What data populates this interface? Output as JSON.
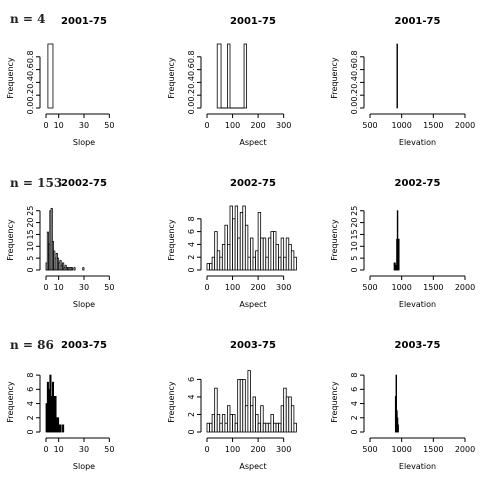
{
  "chart_data": [
    {
      "row_label": "n = 4",
      "panels": [
        {
          "type": "histogram",
          "title": "2001-75",
          "xlabel": "Slope",
          "ylabel": "Frequency",
          "xlim": [
            0,
            60
          ],
          "xticks": [
            "0",
            "10",
            "30",
            "50"
          ],
          "ylim": [
            0,
            1
          ],
          "yticks": [
            "0.0",
            "0.2",
            "0.4",
            "0.6",
            "0.8"
          ],
          "fill": "none",
          "bins": [
            {
              "x0": 1.5,
              "x1": 5.5,
              "count": 1
            }
          ]
        },
        {
          "type": "histogram",
          "title": "2001-75",
          "xlabel": "Aspect",
          "ylabel": "Frequency",
          "xlim": [
            0,
            360
          ],
          "xticks": [
            "0",
            "100",
            "200",
            "300"
          ],
          "ylim": [
            0,
            1
          ],
          "yticks": [
            "0.0",
            "0.2",
            "0.4",
            "0.6",
            "0.8"
          ],
          "fill": "none",
          "bins": [
            {
              "x0": 40,
              "x1": 55,
              "count": 1
            },
            {
              "x0": 55,
              "x1": 80,
              "count": 0
            },
            {
              "x0": 80,
              "x1": 90,
              "count": 1
            },
            {
              "x0": 90,
              "x1": 145,
              "count": 0
            },
            {
              "x0": 145,
              "x1": 155,
              "count": 1
            }
          ]
        },
        {
          "type": "histogram",
          "title": "2001-75",
          "xlabel": "Elevation",
          "ylabel": "Frequency",
          "xlim": [
            500,
            2000
          ],
          "xticks": [
            "500",
            "1000",
            "1500",
            "2000"
          ],
          "ylim": [
            0,
            1
          ],
          "yticks": [
            "0.0",
            "0.2",
            "0.4",
            "0.6",
            "0.8"
          ],
          "fill": "none",
          "bins": [
            {
              "x0": 925,
              "x1": 929,
              "count": 1
            }
          ]
        }
      ]
    },
    {
      "row_label": "n = 153",
      "panels": [
        {
          "type": "histogram",
          "title": "2002-75",
          "xlabel": "Slope",
          "ylabel": "Frequency",
          "xlim": [
            0,
            60
          ],
          "xticks": [
            "0",
            "10",
            "30",
            "50"
          ],
          "ylim": [
            0,
            27
          ],
          "yticks": [
            "0",
            "5",
            "10",
            "15",
            "20",
            "25"
          ],
          "fill": "none",
          "bins": [
            {
              "x0": 0,
              "x1": 1,
              "count": 3
            },
            {
              "x0": 1,
              "x1": 2,
              "count": 16
            },
            {
              "x0": 2,
              "x1": 3,
              "count": 11
            },
            {
              "x0": 3,
              "x1": 4,
              "count": 25
            },
            {
              "x0": 4,
              "x1": 5,
              "count": 26
            },
            {
              "x0": 5,
              "x1": 6,
              "count": 12
            },
            {
              "x0": 6,
              "x1": 7,
              "count": 8
            },
            {
              "x0": 7,
              "x1": 8,
              "count": 5
            },
            {
              "x0": 8,
              "x1": 9,
              "count": 7
            },
            {
              "x0": 9,
              "x1": 10,
              "count": 5
            },
            {
              "x0": 10,
              "x1": 11,
              "count": 3
            },
            {
              "x0": 11,
              "x1": 12,
              "count": 4
            },
            {
              "x0": 12,
              "x1": 13,
              "count": 2
            },
            {
              "x0": 13,
              "x1": 14,
              "count": 3
            },
            {
              "x0": 14,
              "x1": 15,
              "count": 1
            },
            {
              "x0": 15,
              "x1": 16,
              "count": 2
            },
            {
              "x0": 16,
              "x1": 17,
              "count": 1
            },
            {
              "x0": 17,
              "x1": 18,
              "count": 1
            },
            {
              "x0": 18,
              "x1": 19,
              "count": 1
            },
            {
              "x0": 19,
              "x1": 20,
              "count": 1
            },
            {
              "x0": 20,
              "x1": 21,
              "count": 1
            },
            {
              "x0": 22,
              "x1": 23,
              "count": 1
            },
            {
              "x0": 29,
              "x1": 30,
              "count": 1
            }
          ]
        },
        {
          "type": "histogram",
          "title": "2002-75",
          "xlabel": "Aspect",
          "ylabel": "Frequency",
          "xlim": [
            0,
            360
          ],
          "xticks": [
            "0",
            "100",
            "200",
            "300"
          ],
          "ylim": [
            0,
            10
          ],
          "yticks": [
            "0",
            "2",
            "4",
            "6",
            "8"
          ],
          "fill": "none",
          "bins": [
            {
              "x0": 0,
              "x1": 10,
              "count": 1
            },
            {
              "x0": 10,
              "x1": 20,
              "count": 1
            },
            {
              "x0": 20,
              "x1": 30,
              "count": 2
            },
            {
              "x0": 30,
              "x1": 40,
              "count": 6
            },
            {
              "x0": 40,
              "x1": 50,
              "count": 3
            },
            {
              "x0": 50,
              "x1": 60,
              "count": 2
            },
            {
              "x0": 60,
              "x1": 70,
              "count": 4
            },
            {
              "x0": 70,
              "x1": 80,
              "count": 7
            },
            {
              "x0": 80,
              "x1": 90,
              "count": 4
            },
            {
              "x0": 90,
              "x1": 100,
              "count": 10
            },
            {
              "x0": 100,
              "x1": 110,
              "count": 8
            },
            {
              "x0": 110,
              "x1": 120,
              "count": 10
            },
            {
              "x0": 120,
              "x1": 130,
              "count": 5
            },
            {
              "x0": 130,
              "x1": 140,
              "count": 9
            },
            {
              "x0": 140,
              "x1": 150,
              "count": 10
            },
            {
              "x0": 150,
              "x1": 160,
              "count": 7
            },
            {
              "x0": 160,
              "x1": 170,
              "count": 2
            },
            {
              "x0": 170,
              "x1": 180,
              "count": 5
            },
            {
              "x0": 180,
              "x1": 190,
              "count": 2
            },
            {
              "x0": 190,
              "x1": 200,
              "count": 3
            },
            {
              "x0": 200,
              "x1": 210,
              "count": 9
            },
            {
              "x0": 210,
              "x1": 220,
              "count": 5
            },
            {
              "x0": 220,
              "x1": 230,
              "count": 5
            },
            {
              "x0": 230,
              "x1": 240,
              "count": 2
            },
            {
              "x0": 240,
              "x1": 250,
              "count": 5
            },
            {
              "x0": 250,
              "x1": 260,
              "count": 6
            },
            {
              "x0": 260,
              "x1": 270,
              "count": 6
            },
            {
              "x0": 270,
              "x1": 280,
              "count": 4
            },
            {
              "x0": 280,
              "x1": 290,
              "count": 2
            },
            {
              "x0": 290,
              "x1": 300,
              "count": 5
            },
            {
              "x0": 300,
              "x1": 310,
              "count": 2
            },
            {
              "x0": 310,
              "x1": 320,
              "count": 5
            },
            {
              "x0": 320,
              "x1": 330,
              "count": 4
            },
            {
              "x0": 330,
              "x1": 340,
              "count": 3
            },
            {
              "x0": 340,
              "x1": 350,
              "count": 2
            }
          ]
        },
        {
          "type": "histogram",
          "title": "2002-75",
          "xlabel": "Elevation",
          "ylabel": "Frequency",
          "xlim": [
            500,
            2000
          ],
          "xticks": [
            "500",
            "1000",
            "1500",
            "2000"
          ],
          "ylim": [
            0,
            27
          ],
          "yticks": [
            "0",
            "5",
            "10",
            "15",
            "20",
            "25"
          ],
          "fill": "#000",
          "bins": [
            {
              "x0": 880,
              "x1": 900,
              "count": 3
            },
            {
              "x0": 900,
              "x1": 920,
              "count": 2
            },
            {
              "x0": 920,
              "x1": 930,
              "count": 13
            },
            {
              "x0": 930,
              "x1": 940,
              "count": 25
            },
            {
              "x0": 940,
              "x1": 960,
              "count": 13
            }
          ]
        }
      ]
    },
    {
      "row_label": "n = 86",
      "panels": [
        {
          "type": "histogram",
          "title": "2003-75",
          "xlabel": "Slope",
          "ylabel": "Frequency",
          "xlim": [
            0,
            60
          ],
          "xticks": [
            "0",
            "10",
            "30",
            "50"
          ],
          "ylim": [
            0,
            9
          ],
          "yticks": [
            "0",
            "2",
            "4",
            "6",
            "8"
          ],
          "fill": "#000",
          "bins": [
            {
              "x0": 0,
              "x1": 1,
              "count": 4
            },
            {
              "x0": 1,
              "x1": 2,
              "count": 7
            },
            {
              "x0": 2,
              "x1": 3,
              "count": 6
            },
            {
              "x0": 3,
              "x1": 4,
              "count": 8
            },
            {
              "x0": 4,
              "x1": 5,
              "count": 5
            },
            {
              "x0": 5,
              "x1": 6,
              "count": 7
            },
            {
              "x0": 6,
              "x1": 7,
              "count": 5
            },
            {
              "x0": 7,
              "x1": 8,
              "count": 5
            },
            {
              "x0": 8,
              "x1": 9,
              "count": 2
            },
            {
              "x0": 9,
              "x1": 10,
              "count": 2
            },
            {
              "x0": 10,
              "x1": 11,
              "count": 1
            },
            {
              "x0": 11,
              "x1": 12,
              "count": 1
            },
            {
              "x0": 13,
              "x1": 14,
              "count": 1
            }
          ]
        },
        {
          "type": "histogram",
          "title": "2003-75",
          "xlabel": "Aspect",
          "ylabel": "Frequency",
          "xlim": [
            0,
            360
          ],
          "xticks": [
            "0",
            "100",
            "200",
            "300"
          ],
          "ylim": [
            0,
            7.3
          ],
          "yticks": [
            "0",
            "2",
            "4",
            "6"
          ],
          "fill": "none",
          "bins": [
            {
              "x0": 0,
              "x1": 10,
              "count": 1
            },
            {
              "x0": 10,
              "x1": 20,
              "count": 1
            },
            {
              "x0": 20,
              "x1": 30,
              "count": 2
            },
            {
              "x0": 30,
              "x1": 40,
              "count": 5
            },
            {
              "x0": 40,
              "x1": 50,
              "count": 2
            },
            {
              "x0": 50,
              "x1": 60,
              "count": 1
            },
            {
              "x0": 60,
              "x1": 70,
              "count": 2
            },
            {
              "x0": 70,
              "x1": 80,
              "count": 1
            },
            {
              "x0": 80,
              "x1": 90,
              "count": 3
            },
            {
              "x0": 90,
              "x1": 100,
              "count": 2
            },
            {
              "x0": 100,
              "x1": 110,
              "count": 2
            },
            {
              "x0": 110,
              "x1": 120,
              "count": 1
            },
            {
              "x0": 120,
              "x1": 130,
              "count": 6
            },
            {
              "x0": 130,
              "x1": 140,
              "count": 6
            },
            {
              "x0": 140,
              "x1": 150,
              "count": 6
            },
            {
              "x0": 150,
              "x1": 160,
              "count": 3
            },
            {
              "x0": 160,
              "x1": 170,
              "count": 7
            },
            {
              "x0": 170,
              "x1": 180,
              "count": 3
            },
            {
              "x0": 180,
              "x1": 190,
              "count": 4
            },
            {
              "x0": 190,
              "x1": 200,
              "count": 2
            },
            {
              "x0": 200,
              "x1": 210,
              "count": 1
            },
            {
              "x0": 210,
              "x1": 220,
              "count": 3
            },
            {
              "x0": 220,
              "x1": 230,
              "count": 1
            },
            {
              "x0": 230,
              "x1": 240,
              "count": 1
            },
            {
              "x0": 240,
              "x1": 250,
              "count": 1
            },
            {
              "x0": 250,
              "x1": 260,
              "count": 2
            },
            {
              "x0": 260,
              "x1": 270,
              "count": 1
            },
            {
              "x0": 270,
              "x1": 280,
              "count": 1
            },
            {
              "x0": 280,
              "x1": 290,
              "count": 1
            },
            {
              "x0": 290,
              "x1": 300,
              "count": 3
            },
            {
              "x0": 300,
              "x1": 310,
              "count": 5
            },
            {
              "x0": 310,
              "x1": 320,
              "count": 4
            },
            {
              "x0": 320,
              "x1": 330,
              "count": 4
            },
            {
              "x0": 330,
              "x1": 340,
              "count": 3
            },
            {
              "x0": 340,
              "x1": 350,
              "count": 1
            }
          ]
        },
        {
          "type": "histogram",
          "title": "2003-75",
          "xlabel": "Elevation",
          "ylabel": "Frequency",
          "xlim": [
            500,
            2000
          ],
          "xticks": [
            "500",
            "1000",
            "1500",
            "2000"
          ],
          "ylim": [
            0,
            9
          ],
          "yticks": [
            "0",
            "2",
            "4",
            "6",
            "8"
          ],
          "fill": "#000",
          "bins": [
            {
              "x0": 900,
              "x1": 910,
              "count": 5
            },
            {
              "x0": 910,
              "x1": 920,
              "count": 8
            },
            {
              "x0": 920,
              "x1": 930,
              "count": 3
            },
            {
              "x0": 930,
              "x1": 940,
              "count": 2
            },
            {
              "x0": 940,
              "x1": 950,
              "count": 1
            }
          ]
        }
      ]
    }
  ]
}
